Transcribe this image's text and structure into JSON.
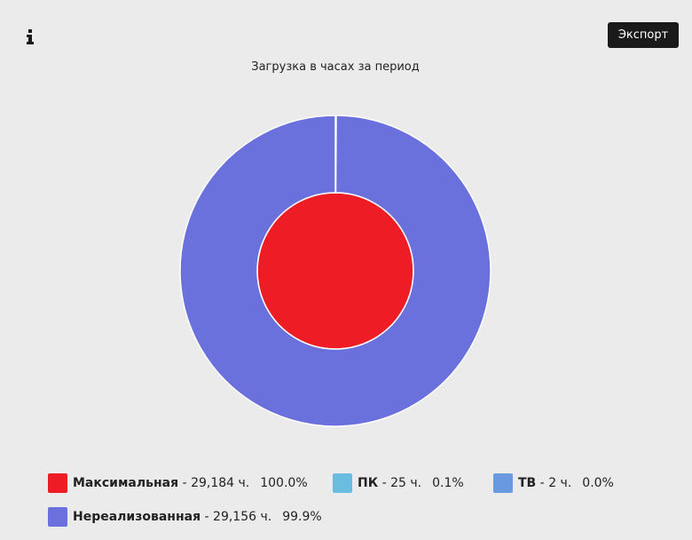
{
  "toolbar": {
    "export_button": "Экспорт"
  },
  "chart_data": {
    "type": "nested-pie",
    "title": "Загрузка в часах за период",
    "items": [
      {
        "name": "Максимальная",
        "color": "#ee1c25",
        "ring": "inner",
        "value": 29184,
        "value_label": "29,184 ч.",
        "percent": 100,
        "percent_label": "100.0%"
      },
      {
        "name": "ПК",
        "color": "#6bbde0",
        "ring": "outer",
        "value": 25,
        "value_label": "25 ч.",
        "percent": 0.1,
        "percent_label": "0.1%"
      },
      {
        "name": "ТВ",
        "color": "#6b99e0",
        "ring": "outer",
        "value": 2,
        "value_label": "2 ч.",
        "percent": 0,
        "percent_label": "0.0%"
      },
      {
        "name": "Нереализованная",
        "color": "#6a70dc",
        "ring": "outer",
        "value": 29156,
        "value_label": "29,156 ч.",
        "percent": 99.9,
        "percent_label": "99.9%"
      }
    ]
  }
}
